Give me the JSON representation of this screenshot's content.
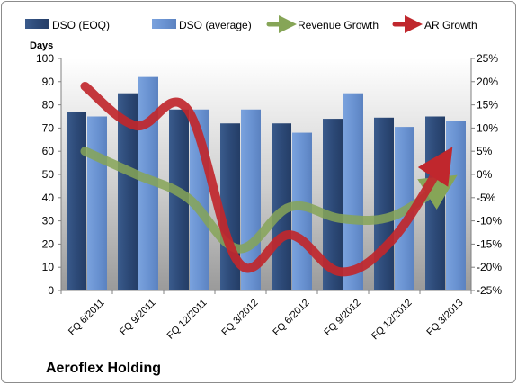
{
  "chart_data": {
    "type": "bar",
    "categories": [
      "FQ 6/2011",
      "FQ 9/2011",
      "FQ 12/2011",
      "FQ 3/2012",
      "FQ 6/2012",
      "FQ 9/2012",
      "FQ 12/2012",
      "FQ 3/2013"
    ],
    "series": [
      {
        "name": "DSO (EOQ)",
        "type": "bar",
        "axis": "left",
        "color": "#2f4f7f",
        "values": [
          77,
          85,
          78,
          72,
          72,
          74,
          74.5,
          75
        ]
      },
      {
        "name": "DSO (average)",
        "type": "bar",
        "axis": "left",
        "color": "#6d96d4",
        "values": [
          75,
          92,
          78,
          78,
          68,
          85,
          70.5,
          73
        ]
      },
      {
        "name": "Revenue Growth",
        "type": "line",
        "axis": "right",
        "color": "#86a557",
        "values": [
          5,
          0,
          -5,
          -16,
          -7,
          -9.5,
          -9,
          -2
        ]
      },
      {
        "name": "AR Growth",
        "type": "line",
        "axis": "right",
        "color": "#c0272d",
        "values": [
          19,
          10.5,
          14,
          -19,
          -13,
          -21,
          -14,
          3
        ]
      }
    ],
    "ylabel": "Days",
    "ylim": [
      0,
      100
    ],
    "yticks": [
      "0",
      "10",
      "20",
      "30",
      "40",
      "50",
      "60",
      "70",
      "80",
      "90",
      "100"
    ],
    "y2lim": [
      -25,
      25
    ],
    "y2ticks": [
      "-25%",
      "-20%",
      "-15%",
      "-10%",
      "-5%",
      "0%",
      "5%",
      "10%",
      "15%",
      "20%",
      "25%"
    ],
    "grid": false,
    "legend_position": "top"
  },
  "footer": {
    "company": "Aeroflex Holding"
  }
}
